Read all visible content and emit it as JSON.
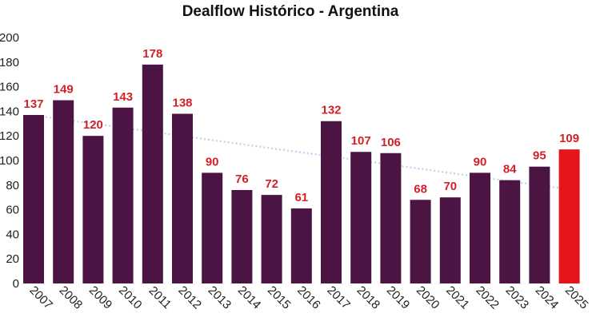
{
  "chart_data": {
    "type": "bar",
    "title": "Dealflow Histórico - Argentina",
    "xlabel": "",
    "ylabel": "",
    "categories": [
      "2007",
      "2008",
      "2009",
      "2010",
      "2011",
      "2012",
      "2013",
      "2014",
      "2015",
      "2016",
      "2017",
      "2018",
      "2019",
      "2020",
      "2021",
      "2022",
      "2023",
      "2024",
      "2025"
    ],
    "values": [
      137,
      149,
      120,
      143,
      178,
      138,
      90,
      76,
      72,
      61,
      132,
      107,
      106,
      68,
      70,
      90,
      84,
      95,
      109
    ],
    "ylim": [
      0,
      200
    ],
    "yticks": [
      0,
      20,
      40,
      60,
      80,
      100,
      120,
      140,
      160,
      180,
      200
    ],
    "grid": false,
    "legend": "none",
    "trendline": {
      "style": "dotted",
      "color": "#b9d4ec"
    },
    "colors": {
      "bar": "#4b1442",
      "highlight_bar": "#e8141b",
      "data_label": "#d42027"
    },
    "highlight_index": 18
  }
}
